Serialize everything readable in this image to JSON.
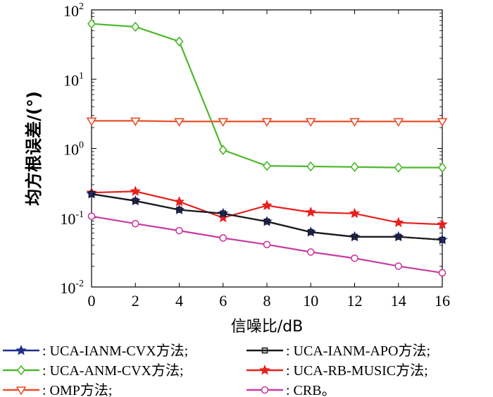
{
  "chart_data": {
    "type": "line",
    "xlabel": "信噪比/dB",
    "ylabel": "均方根误差/(°)",
    "x": [
      0,
      2,
      4,
      6,
      8,
      10,
      12,
      14,
      16
    ],
    "xlim": [
      0,
      16
    ],
    "ylim": [
      0.01,
      100
    ],
    "yscale": "log",
    "xticks": [
      "0",
      "2",
      "4",
      "6",
      "8",
      "10",
      "12",
      "14",
      "16"
    ],
    "yticks": [
      {
        "value": 0.01,
        "base": "10",
        "exp": "-2"
      },
      {
        "value": 0.1,
        "base": "10",
        "exp": "-1"
      },
      {
        "value": 1,
        "base": "10",
        "exp": "0"
      },
      {
        "value": 10,
        "base": "10",
        "exp": "1"
      },
      {
        "value": 100,
        "base": "10",
        "exp": "2"
      }
    ],
    "grid": false,
    "legend_position": "below",
    "series": [
      {
        "name": ": UCA-IANM-CVX方法;",
        "color": "#1f2e8c",
        "marker": "star",
        "values": [
          0.22,
          0.175,
          0.13,
          0.115,
          0.088,
          0.062,
          0.053,
          0.053,
          0.048
        ]
      },
      {
        "name": ": UCA-IANM-APO方法;",
        "color": "#1a1a1a",
        "marker": "square",
        "values": [
          0.22,
          0.175,
          0.13,
          0.115,
          0.088,
          0.062,
          0.053,
          0.053,
          0.048
        ]
      },
      {
        "name": ": UCA-ANM-CVX方法;",
        "color": "#4cb82c",
        "marker": "diamond",
        "values": [
          63,
          57,
          35,
          0.95,
          0.56,
          0.55,
          0.54,
          0.53,
          0.53
        ]
      },
      {
        "name": ": UCA-RB-MUSIC方法;",
        "color": "#e8201e",
        "marker": "star",
        "values": [
          0.23,
          0.24,
          0.17,
          0.1,
          0.15,
          0.12,
          0.115,
          0.085,
          0.08
        ]
      },
      {
        "name": ": OMP方法;",
        "color": "#e8502a",
        "marker": "triangle-down",
        "values": [
          2.5,
          2.5,
          2.45,
          2.45,
          2.45,
          2.45,
          2.45,
          2.45,
          2.45
        ]
      },
      {
        "name": ": CRB。",
        "color": "#c93ca0",
        "marker": "circle",
        "values": [
          0.105,
          0.082,
          0.065,
          0.051,
          0.041,
          0.032,
          0.026,
          0.02,
          0.016
        ]
      }
    ]
  }
}
